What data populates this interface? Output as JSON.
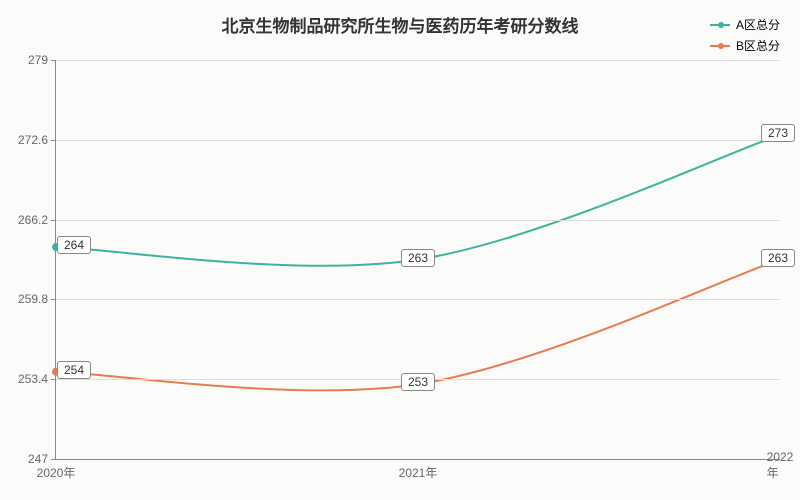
{
  "chart": {
    "type": "line",
    "title": "北京生物制品研究所生物与医药历年考研分数线",
    "title_fontsize": 17,
    "background_color": "#fbfcfa",
    "plot_background": "#fbfcfa",
    "grid_color": "#dddddd",
    "axis_color": "#888888",
    "text_color": "#666666",
    "label_fontsize": 12,
    "x_categories": [
      "2020年",
      "2021年",
      "2022年"
    ],
    "ylim": [
      247,
      279
    ],
    "yticks": [
      247,
      253.4,
      259.8,
      266.2,
      272.6,
      279
    ],
    "series": [
      {
        "name": "A区总分",
        "color": "#3bb39e",
        "values": [
          264,
          263,
          273
        ],
        "line_width": 2,
        "marker": "circle",
        "marker_size": 4
      },
      {
        "name": "B区总分",
        "color": "#e77a52",
        "values": [
          254,
          253,
          263
        ],
        "line_width": 2,
        "marker": "circle",
        "marker_size": 4
      }
    ]
  }
}
